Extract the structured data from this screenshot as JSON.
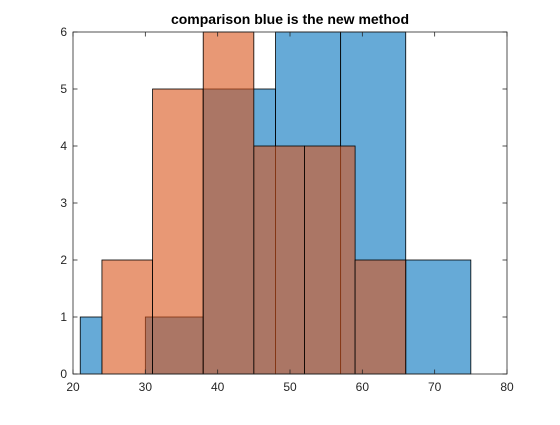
{
  "chart_data": {
    "type": "bar",
    "subtype": "histogram",
    "title": "comparison blue is the new method",
    "xlabel": "",
    "ylabel": "",
    "xlim": [
      20,
      80
    ],
    "ylim": [
      0,
      6
    ],
    "xticks": [
      "20",
      "30",
      "40",
      "50",
      "60",
      "70",
      "80"
    ],
    "yticks": [
      "0",
      "1",
      "2",
      "3",
      "4",
      "5",
      "6"
    ],
    "grid": false,
    "legend": "none",
    "series": [
      {
        "color": "#0072BD",
        "opacity": 0.6,
        "bins": [
          {
            "x0": 21,
            "x1": 24,
            "count": 1
          },
          {
            "x0": 30,
            "x1": 38,
            "count": 1
          },
          {
            "x0": 38,
            "x1": 48,
            "count": 5
          },
          {
            "x0": 48,
            "x1": 57,
            "count": 6
          },
          {
            "x0": 57,
            "x1": 66,
            "count": 6
          },
          {
            "x0": 66,
            "x1": 75,
            "count": 2
          }
        ]
      },
      {
        "color": "#D95319",
        "opacity": 0.6,
        "bins": [
          {
            "x0": 24,
            "x1": 31,
            "count": 2
          },
          {
            "x0": 31,
            "x1": 38,
            "count": 5
          },
          {
            "x0": 38,
            "x1": 45,
            "count": 6
          },
          {
            "x0": 45,
            "x1": 52,
            "count": 4
          },
          {
            "x0": 52,
            "x1": 59,
            "count": 4
          },
          {
            "x0": 59,
            "x1": 66,
            "count": 2
          }
        ]
      }
    ]
  }
}
